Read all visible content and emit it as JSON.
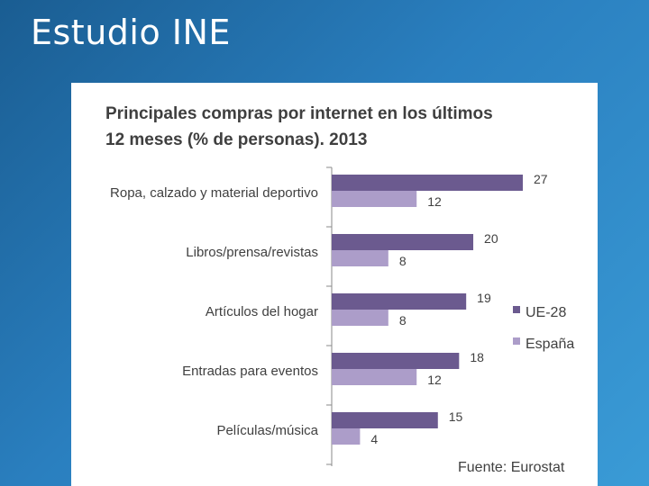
{
  "slide": {
    "title": "Estudio INE"
  },
  "colors": {
    "ue28": "#6b5a8f",
    "espana": "#ac9dc9",
    "axis": "#8a8a8a"
  },
  "chart_data": {
    "type": "bar",
    "orientation": "horizontal",
    "title_lines": [
      "Principales compras por internet en los últimos",
      "12 meses (% de personas). 2013"
    ],
    "categories": [
      "Ropa, calzado y material deportivo",
      "Libros/prensa/revistas",
      "Artículos del hogar",
      "Entradas para eventos",
      "Películas/música"
    ],
    "series": [
      {
        "name": "UE-28",
        "values": [
          27,
          20,
          19,
          18,
          15
        ]
      },
      {
        "name": "España",
        "values": [
          12,
          8,
          8,
          12,
          4
        ]
      }
    ],
    "xlim": [
      0,
      27
    ],
    "legend_position": "right",
    "source": "Fuente: Eurostat"
  }
}
